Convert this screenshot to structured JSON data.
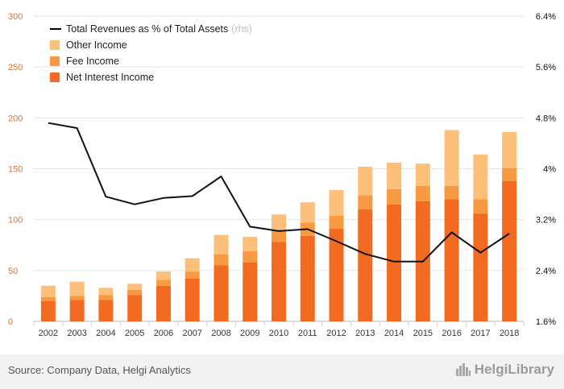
{
  "chart_data": {
    "type": "bar",
    "categories": [
      "2002",
      "2003",
      "2004",
      "2005",
      "2006",
      "2007",
      "2008",
      "2009",
      "2010",
      "2011",
      "2012",
      "2013",
      "2014",
      "2015",
      "2016",
      "2017",
      "2018"
    ],
    "series": [
      {
        "name": "Net Interest Income",
        "kind": "stacked-bar",
        "axis": "left",
        "values": [
          20,
          21,
          21,
          26,
          35,
          42,
          55,
          58,
          78,
          84,
          91,
          110,
          115,
          118,
          120,
          106,
          138
        ]
      },
      {
        "name": "Fee Income",
        "kind": "stacked-bar",
        "axis": "left",
        "values": [
          4,
          4,
          5,
          5,
          6,
          7,
          11,
          11,
          12,
          13,
          13,
          14,
          15,
          15,
          13,
          14,
          13
        ]
      },
      {
        "name": "Other Income",
        "kind": "stacked-bar",
        "axis": "left",
        "values": [
          11,
          14,
          7,
          6,
          8,
          13,
          19,
          14,
          15,
          20,
          25,
          28,
          26,
          22,
          55,
          44,
          35
        ]
      },
      {
        "name": "Total Revenues as % of Total Assets",
        "kind": "line",
        "axis": "right",
        "values": [
          4.72,
          4.64,
          3.56,
          3.44,
          3.54,
          3.57,
          3.88,
          3.09,
          3.02,
          3.05,
          2.86,
          2.66,
          2.54,
          2.54,
          3.0,
          2.68,
          2.98
        ]
      }
    ],
    "left_axis": {
      "ylim": [
        0,
        300
      ],
      "ticks": [
        "0",
        "50",
        "100",
        "150",
        "200",
        "250",
        "300"
      ],
      "color": "#f26b21"
    },
    "right_axis": {
      "ylim": [
        1.6,
        6.4
      ],
      "ticks": [
        "1.6%",
        "2.4%",
        "3.2%",
        "4%",
        "4.8%",
        "5.6%",
        "6.4%"
      ],
      "color": "#000000"
    },
    "grid": true,
    "legend_placement": "top-left"
  },
  "legend": {
    "line_label": "Total Revenues as % of Total Assets",
    "line_suffix": "(rhs)",
    "items": [
      "Other Income",
      "Fee Income",
      "Net Interest Income"
    ]
  },
  "colors": {
    "net_interest": "#f26b21",
    "fee": "#f89a42",
    "other": "#fcc07a",
    "line": "#111111",
    "grid": "#e5e5e5",
    "left_ticks": "#f26b21"
  },
  "footer": {
    "source": "Source: Company Data, Helgi Analytics",
    "brand": "HelgiLibrary",
    "brand_icon": "city-skyline-icon"
  }
}
